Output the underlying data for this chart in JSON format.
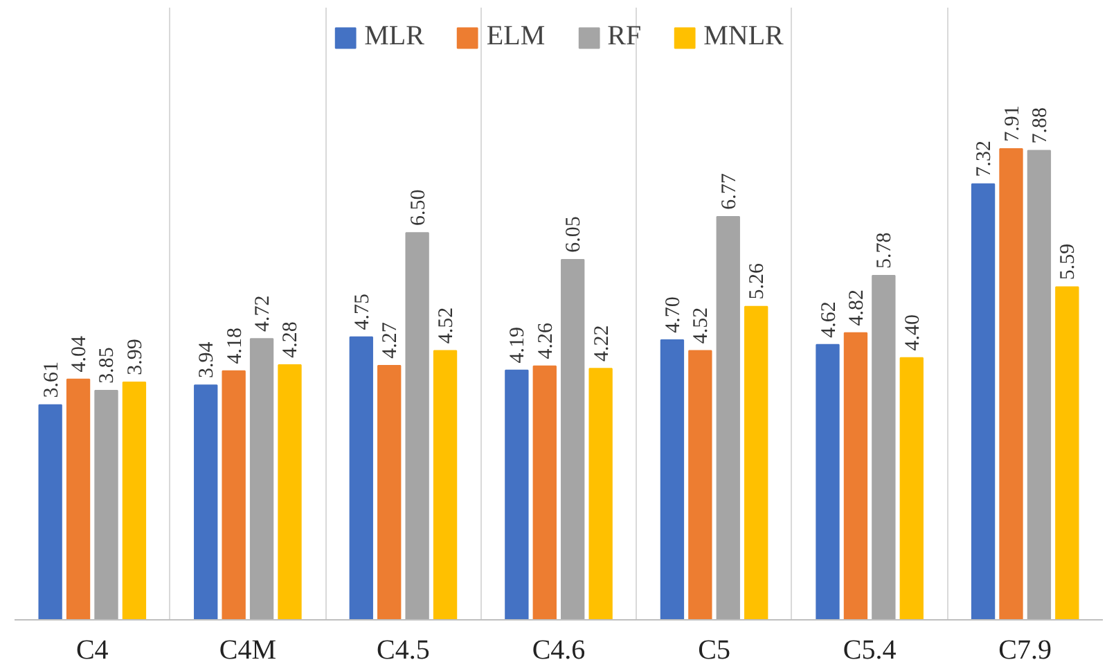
{
  "chart_data": {
    "type": "bar",
    "categories": [
      "C4",
      "C4M",
      "C4.5",
      "C4.6",
      "C5",
      "C5.4",
      "C7.9"
    ],
    "series": [
      {
        "name": "MLR",
        "color": "#4472c4",
        "values": [
          3.61,
          3.94,
          4.75,
          4.19,
          4.7,
          4.62,
          7.32
        ],
        "value_labels": [
          "3.61",
          "3.94",
          "4.75",
          "4.19",
          "4.70",
          "4.62",
          "7.32"
        ]
      },
      {
        "name": "ELM",
        "color": "#ed7d31",
        "values": [
          4.04,
          4.18,
          4.27,
          4.26,
          4.52,
          4.82,
          7.91
        ],
        "value_labels": [
          "4.04",
          "4.18",
          "4.27",
          "4.26",
          "4.52",
          "4.82",
          "7.91"
        ]
      },
      {
        "name": "RF",
        "color": "#a5a5a5",
        "values": [
          3.85,
          4.72,
          6.5,
          6.05,
          6.77,
          5.78,
          7.88
        ],
        "value_labels": [
          "3.85",
          "4.72",
          "6.50",
          "6.05",
          "6.77",
          "5.78",
          "7.88"
        ]
      },
      {
        "name": "MNLR",
        "color": "#ffc000",
        "values": [
          3.99,
          4.28,
          4.52,
          4.22,
          5.26,
          4.4,
          5.59
        ],
        "value_labels": [
          "3.99",
          "4.28",
          "4.52",
          "4.22",
          "5.26",
          "4.40",
          "5.59"
        ]
      }
    ],
    "grid": "x",
    "legend": "top"
  }
}
